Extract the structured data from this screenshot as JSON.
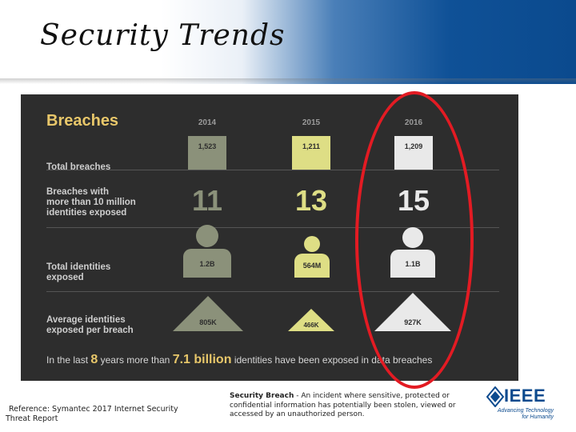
{
  "slide": {
    "title": "Security Trends"
  },
  "infographic": {
    "title": "Breaches",
    "years": [
      "2014",
      "2015",
      "2016"
    ],
    "rows": {
      "total_breaches": {
        "label": "Total breaches",
        "values": [
          "1,523",
          "1,211",
          "1,209"
        ]
      },
      "large_breaches": {
        "label_lines": [
          "Breaches with",
          "more than 10 million",
          "identities exposed"
        ],
        "values": [
          "11",
          "13",
          "15"
        ]
      },
      "identities_exposed": {
        "label_lines": [
          "Total identities",
          "exposed"
        ],
        "values": [
          "1.2B",
          "564M",
          "1.1B"
        ]
      },
      "avg_per_breach": {
        "label_lines": [
          "Average identities",
          "exposed per breach"
        ],
        "values": [
          "805K",
          "466K",
          "927K"
        ]
      }
    },
    "summary": {
      "part1": "In the last",
      "years": "8",
      "part2": "years more than",
      "amount": "7.1 billion",
      "part3": "identities have been exposed in data breaches"
    },
    "colors": {
      "2014": "#8b917a",
      "2015": "#dede85",
      "2016": "#e9e9e9",
      "highlight_oval": "#e31b23",
      "title": "#e8c76a"
    }
  },
  "footer": {
    "reference": "Reference: Symantec 2017 Internet Security Threat Report",
    "definition_term": "Security Breach",
    "definition_text": " - An incident where sensitive, protected or confidential information has potentially been stolen, viewed or accessed by an unauthorized person.",
    "logo": {
      "word": "IEEE",
      "tagline_line1": "Advancing Technology",
      "tagline_line2": "for Humanity"
    }
  }
}
